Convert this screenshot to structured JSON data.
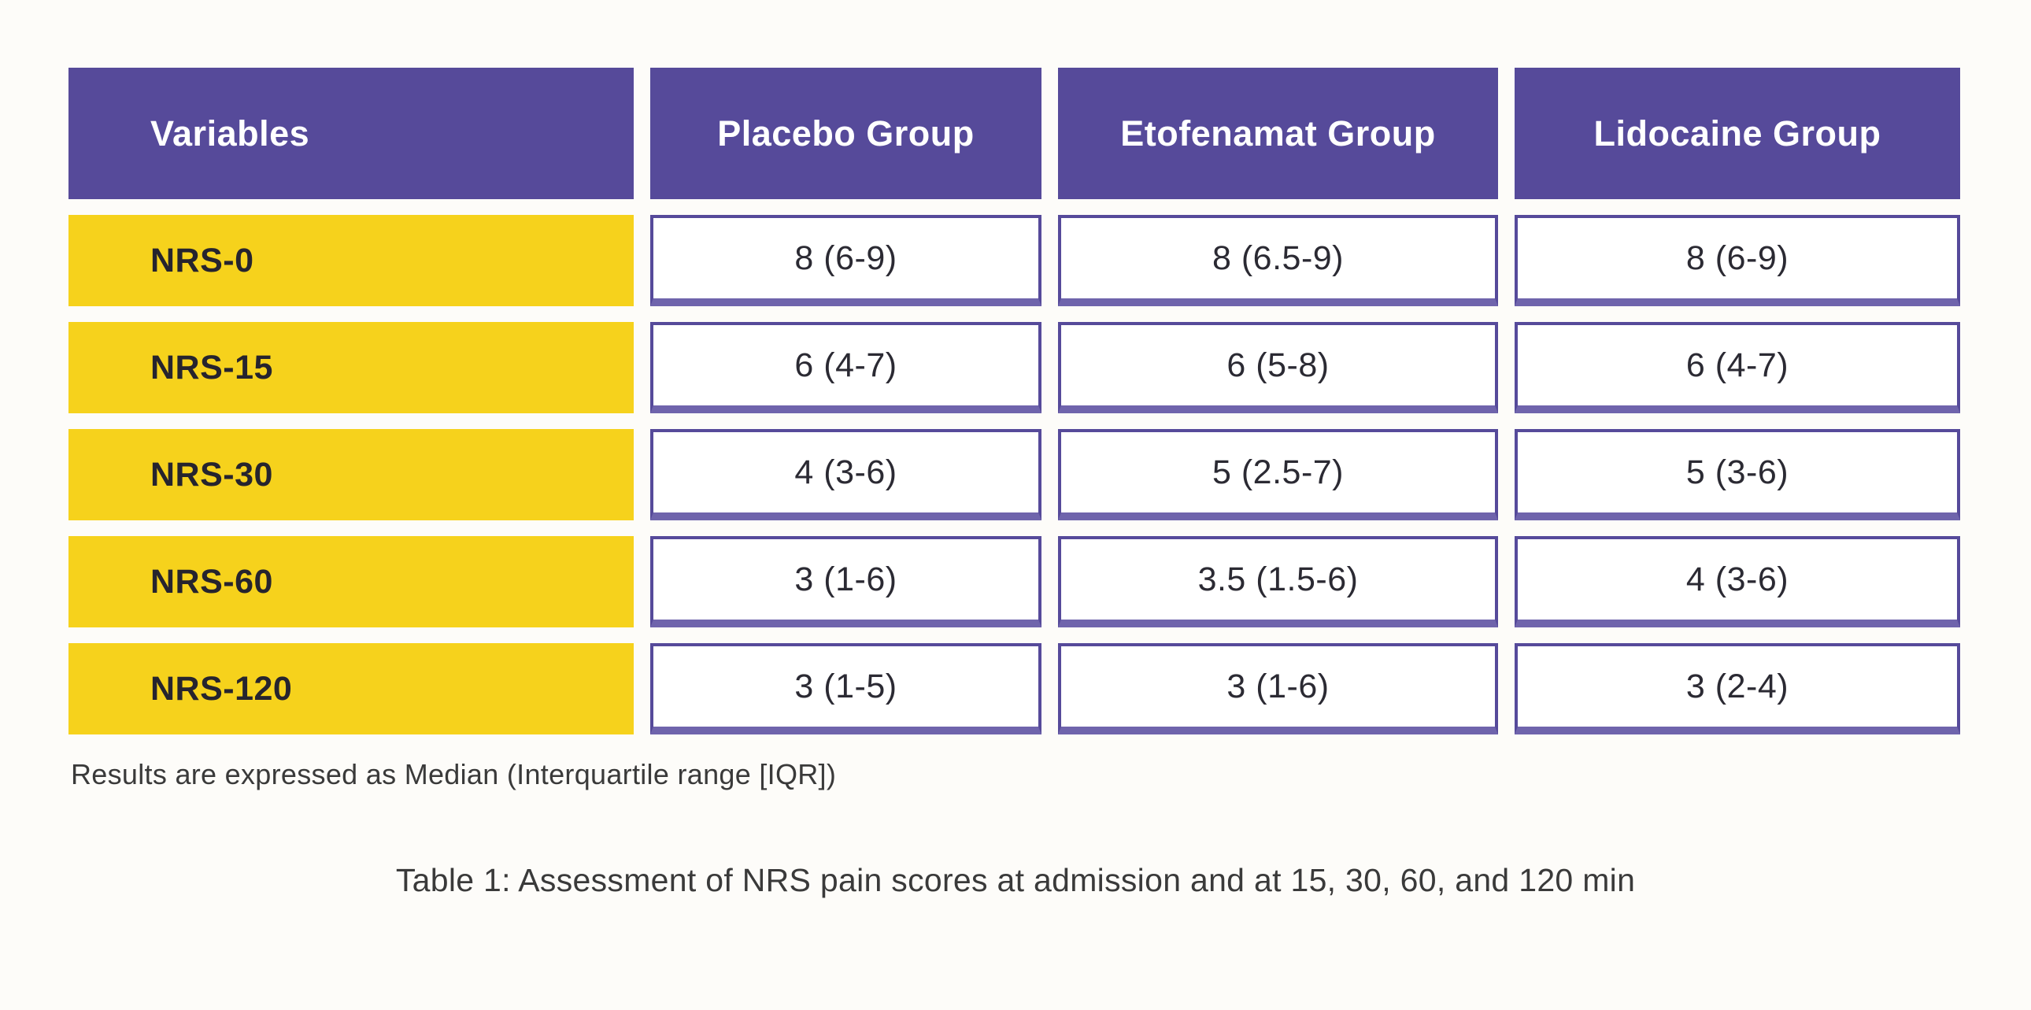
{
  "colors": {
    "header_bg": "#564a9a",
    "header_text": "#ffffff",
    "row_label_bg": "#f6d21c",
    "row_label_text": "#26242e",
    "cell_border": "#564a9a",
    "cell_border_bottom": "#6f64ac",
    "cell_text": "#2b2a33",
    "note_text": "#3a3a3a",
    "page_bg": "#fdfcf9"
  },
  "table": {
    "headers": [
      "Variables",
      "Placebo Group",
      "Etofenamat Group",
      "Lidocaine Group"
    ],
    "rows": [
      {
        "label": "NRS-0",
        "values": [
          "8 (6-9)",
          "8 (6.5-9)",
          "8 (6-9)"
        ]
      },
      {
        "label": "NRS-15",
        "values": [
          "6 (4-7)",
          "6 (5-8)",
          "6 (4-7)"
        ]
      },
      {
        "label": "NRS-30",
        "values": [
          "4 (3-6)",
          "5 (2.5-7)",
          "5 (3-6)"
        ]
      },
      {
        "label": "NRS-60",
        "values": [
          "3 (1-6)",
          "3.5 (1.5-6)",
          "4 (3-6)"
        ]
      },
      {
        "label": "NRS-120",
        "values": [
          "3 (1-5)",
          "3 (1-6)",
          "3 (2-4)"
        ]
      }
    ],
    "note": "Results are expressed as Median (Interquartile range [IQR])",
    "caption": "Table 1: Assessment of NRS pain scores at admission and at 15, 30, 60, and 120 min"
  }
}
